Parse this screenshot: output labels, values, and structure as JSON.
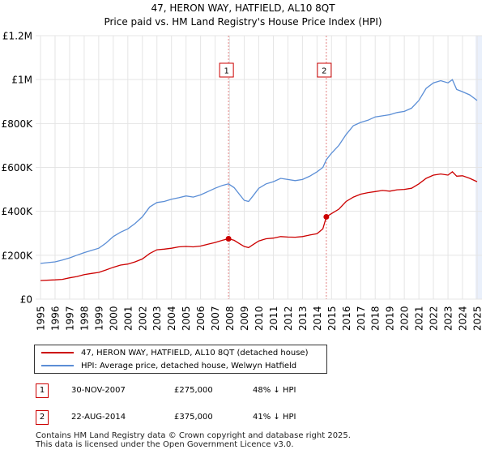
{
  "title": {
    "line1": "47, HERON WAY, HATFIELD, AL10 8QT",
    "line2": "Price paid vs. HM Land Registry's House Price Index (HPI)"
  },
  "colors": {
    "price_line": "#cc0000",
    "hpi_line": "#5b8ed6",
    "grid": "#e5e5e5",
    "vline": "#e08080",
    "shade": "#eaf0fb"
  },
  "legend": {
    "price_label": "47, HERON WAY, HATFIELD, AL10 8QT (detached house)",
    "hpi_label": "HPI: Average price, detached house, Welwyn Hatfield"
  },
  "transactions": [
    {
      "id": "1",
      "date": "30-NOV-2007",
      "price": "£275,000",
      "hpi_diff": "48% ↓ HPI"
    },
    {
      "id": "2",
      "date": "22-AUG-2014",
      "price": "£375,000",
      "hpi_diff": "41% ↓ HPI"
    }
  ],
  "footer": {
    "line1": "Contains HM Land Registry data © Crown copyright and database right 2025.",
    "line2": "This data is licensed under the Open Government Licence v3.0."
  },
  "chart_data": {
    "type": "line",
    "title": "47, HERON WAY, HATFIELD, AL10 8QT — Price paid vs. HM Land Registry's House Price Index (HPI)",
    "xlabel": "",
    "ylabel": "",
    "xlim": [
      1995,
      2025
    ],
    "ylim": [
      0,
      1200000
    ],
    "grid": true,
    "legend_position": "bottom",
    "x_ticks": [
      1995,
      1996,
      1997,
      1998,
      1999,
      2000,
      2001,
      2002,
      2003,
      2004,
      2005,
      2006,
      2007,
      2008,
      2009,
      2010,
      2011,
      2012,
      2013,
      2014,
      2015,
      2016,
      2017,
      2018,
      2019,
      2020,
      2021,
      2022,
      2023,
      2024,
      2025
    ],
    "y_ticks": [
      {
        "value": 0,
        "label": "£0"
      },
      {
        "value": 200000,
        "label": "£200K"
      },
      {
        "value": 400000,
        "label": "£400K"
      },
      {
        "value": 600000,
        "label": "£600K"
      },
      {
        "value": 800000,
        "label": "£800K"
      },
      {
        "value": 1000000,
        "label": "£1M"
      },
      {
        "value": 1200000,
        "label": "£1.2M"
      }
    ],
    "series": [
      {
        "name": "47, HERON WAY, HATFIELD, AL10 8QT (detached house)",
        "x": [
          1995.0,
          1996.0,
          1996.5,
          1997.0,
          1997.5,
          1998.0,
          1998.5,
          1999.0,
          1999.5,
          2000.0,
          2000.5,
          2001.0,
          2001.5,
          2002.0,
          2002.5,
          2003.0,
          2003.5,
          2004.0,
          2004.5,
          2005.0,
          2005.5,
          2006.0,
          2006.5,
          2007.0,
          2007.5,
          2007.92,
          2008.3,
          2008.7,
          2009.0,
          2009.3,
          2009.6,
          2010.0,
          2010.5,
          2011.0,
          2011.5,
          2012.0,
          2012.5,
          2013.0,
          2013.5,
          2014.0,
          2014.4,
          2014.64,
          2015.0,
          2015.5,
          2016.0,
          2016.5,
          2017.0,
          2017.5,
          2018.0,
          2018.5,
          2019.0,
          2019.5,
          2020.0,
          2020.5,
          2021.0,
          2021.5,
          2022.0,
          2022.5,
          2023.0,
          2023.3,
          2023.6,
          2024.0,
          2024.5,
          2025.0
        ],
        "values": [
          85000,
          88000,
          90000,
          97000,
          103000,
          112000,
          117000,
          122000,
          133000,
          145000,
          155000,
          160000,
          170000,
          183000,
          208000,
          225000,
          228000,
          232000,
          238000,
          240000,
          238000,
          242000,
          250000,
          258000,
          268000,
          275000,
          268000,
          252000,
          240000,
          235000,
          248000,
          265000,
          275000,
          278000,
          285000,
          283000,
          282000,
          285000,
          292000,
          298000,
          320000,
          375000,
          390000,
          410000,
          445000,
          465000,
          478000,
          485000,
          490000,
          495000,
          492000,
          498000,
          500000,
          505000,
          525000,
          550000,
          565000,
          570000,
          565000,
          580000,
          560000,
          562000,
          550000,
          535000
        ]
      },
      {
        "name": "HPI: Average price, detached house, Welwyn Hatfield",
        "x": [
          1995.0,
          1996.0,
          1996.5,
          1997.0,
          1997.5,
          1998.0,
          1998.5,
          1999.0,
          1999.5,
          2000.0,
          2000.5,
          2001.0,
          2001.5,
          2002.0,
          2002.5,
          2003.0,
          2003.5,
          2004.0,
          2004.5,
          2005.0,
          2005.5,
          2006.0,
          2006.5,
          2007.0,
          2007.5,
          2007.92,
          2008.3,
          2008.7,
          2009.0,
          2009.3,
          2009.6,
          2010.0,
          2010.5,
          2011.0,
          2011.5,
          2012.0,
          2012.5,
          2013.0,
          2013.5,
          2014.0,
          2014.4,
          2014.64,
          2015.0,
          2015.5,
          2016.0,
          2016.5,
          2017.0,
          2017.5,
          2018.0,
          2018.5,
          2019.0,
          2019.5,
          2020.0,
          2020.5,
          2021.0,
          2021.5,
          2022.0,
          2022.5,
          2023.0,
          2023.3,
          2023.6,
          2024.0,
          2024.5,
          2025.0
        ],
        "values": [
          163000,
          170000,
          178000,
          188000,
          200000,
          212000,
          222000,
          232000,
          255000,
          285000,
          305000,
          320000,
          345000,
          375000,
          420000,
          440000,
          445000,
          455000,
          462000,
          470000,
          465000,
          475000,
          490000,
          505000,
          518000,
          525000,
          508000,
          475000,
          450000,
          445000,
          470000,
          505000,
          525000,
          535000,
          550000,
          545000,
          540000,
          545000,
          560000,
          580000,
          600000,
          635000,
          665000,
          700000,
          750000,
          790000,
          805000,
          815000,
          830000,
          835000,
          840000,
          850000,
          855000,
          870000,
          905000,
          960000,
          985000,
          995000,
          985000,
          1000000,
          955000,
          945000,
          930000,
          905000
        ]
      }
    ],
    "markers": [
      {
        "label": "1",
        "x": 2007.92,
        "value": 275000
      },
      {
        "label": "2",
        "x": 2014.64,
        "value": 375000
      }
    ]
  }
}
